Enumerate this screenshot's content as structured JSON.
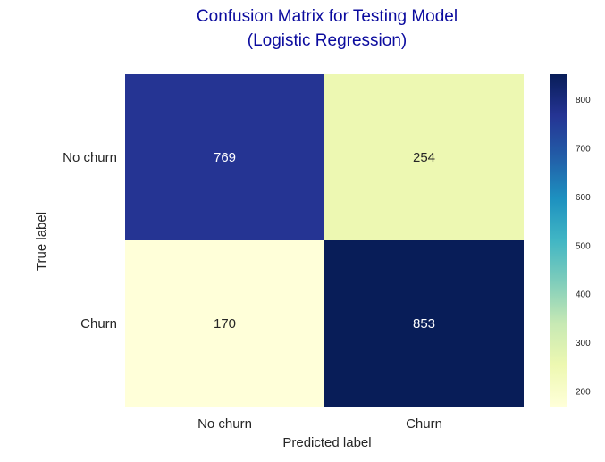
{
  "chart_data": {
    "type": "heatmap",
    "title": "Confusion Matrix for Testing Model",
    "subtitle": "(Logistic Regression)",
    "title_color": "#0b0b9e",
    "xlabel": "Predicted label",
    "ylabel": "True label",
    "x_categories": [
      "No churn",
      "Churn"
    ],
    "y_categories": [
      "No churn",
      "Churn"
    ],
    "values": [
      [
        769,
        254
      ],
      [
        170,
        853
      ]
    ],
    "colorscale": "YlGnBu",
    "colorbar": {
      "range": [
        170,
        853
      ],
      "ticks": [
        200,
        300,
        400,
        500,
        600,
        700,
        800
      ]
    },
    "grid": false
  }
}
